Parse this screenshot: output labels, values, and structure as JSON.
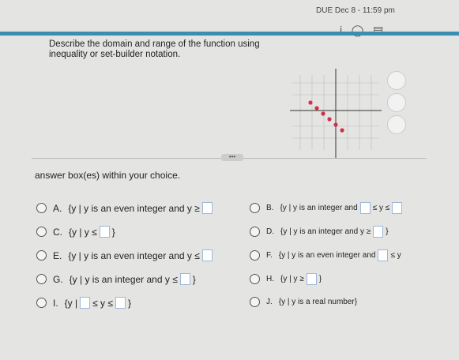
{
  "header": {
    "due": "DUE Dec 8 - 11:59 pm"
  },
  "question": {
    "text": "Describe the domain and range of the function using inequality or set-builder notation."
  },
  "instruction": "answer box(es) within your choice.",
  "choices": [
    {
      "label": "A.",
      "segments": [
        "{y | y is an even integer and y ≥",
        null
      ]
    },
    {
      "label": "B.",
      "segments": [
        "{y | y is an integer and",
        null,
        "≤ y ≤",
        null
      ]
    },
    {
      "label": "C.",
      "segments": [
        "{y | y ≤",
        null,
        "}"
      ]
    },
    {
      "label": "D.",
      "segments": [
        "{y | y is an integer and y ≥",
        null,
        "}"
      ]
    },
    {
      "label": "E.",
      "segments": [
        "{y | y is an even integer and y ≤",
        null
      ]
    },
    {
      "label": "F.",
      "segments": [
        "{y | y is an even integer and",
        null,
        "≤ y"
      ]
    },
    {
      "label": "G.",
      "segments": [
        "{y | y is an integer and y ≤",
        null,
        "}"
      ]
    },
    {
      "label": "H.",
      "segments": [
        "{y | y ≥",
        null,
        "}"
      ]
    },
    {
      "label": "I.",
      "segments": [
        "{y |",
        null,
        "≤ y ≤",
        null,
        "}"
      ]
    },
    {
      "label": "J.",
      "segments": [
        "{y | y is a real number}"
      ]
    }
  ]
}
